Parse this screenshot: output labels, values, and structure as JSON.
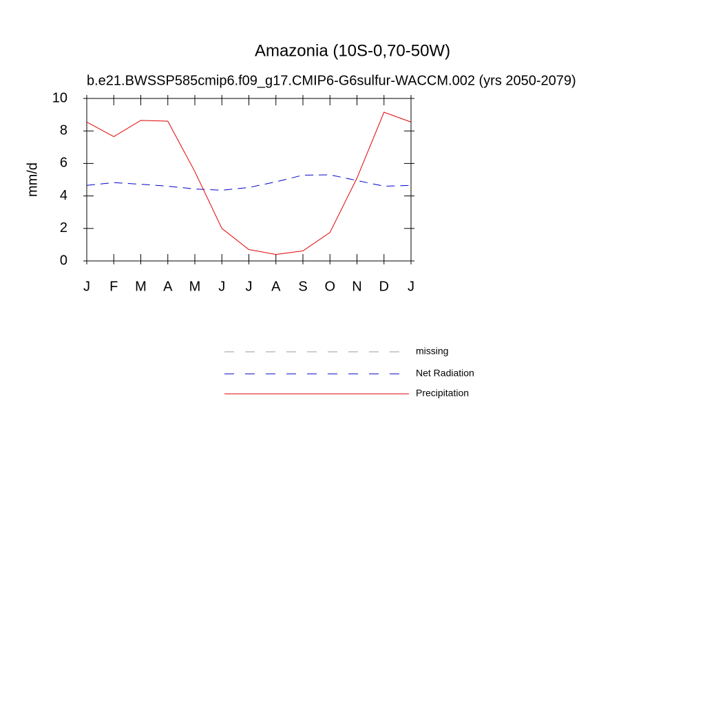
{
  "chart_data": {
    "type": "line",
    "title": "Amazonia (10S-0,70-50W)",
    "subtitle": "b.e21.BWSSP585cmip6.f09_g17.CMIP6-G6sulfur-WACCM.002 (yrs 2050-2079)",
    "y_label": "mm/d",
    "categories": [
      "J",
      "F",
      "M",
      "A",
      "M",
      "J",
      "J",
      "A",
      "S",
      "O",
      "N",
      "D",
      "J"
    ],
    "ylim": [
      0,
      10
    ],
    "yticks": [
      0,
      2,
      4,
      6,
      8,
      10
    ],
    "series": [
      {
        "name": "missing",
        "color": "#999999",
        "line_style": "dashed",
        "values": [
          null,
          null,
          null,
          null,
          null,
          null,
          null,
          null,
          null,
          null,
          null,
          null,
          null
        ]
      },
      {
        "name": "Net Radiation",
        "color": "#0000cc",
        "line_style": "dashed",
        "values": [
          4.65,
          4.82,
          4.72,
          4.6,
          4.43,
          4.35,
          4.52,
          4.87,
          5.28,
          5.3,
          4.95,
          4.6,
          4.65
        ]
      },
      {
        "name": "Precipitation",
        "color": "#e00000",
        "line_style": "solid",
        "values": [
          8.55,
          7.65,
          8.65,
          8.6,
          5.5,
          2.0,
          0.7,
          0.4,
          0.62,
          1.75,
          5.1,
          9.15,
          8.55
        ]
      }
    ]
  }
}
